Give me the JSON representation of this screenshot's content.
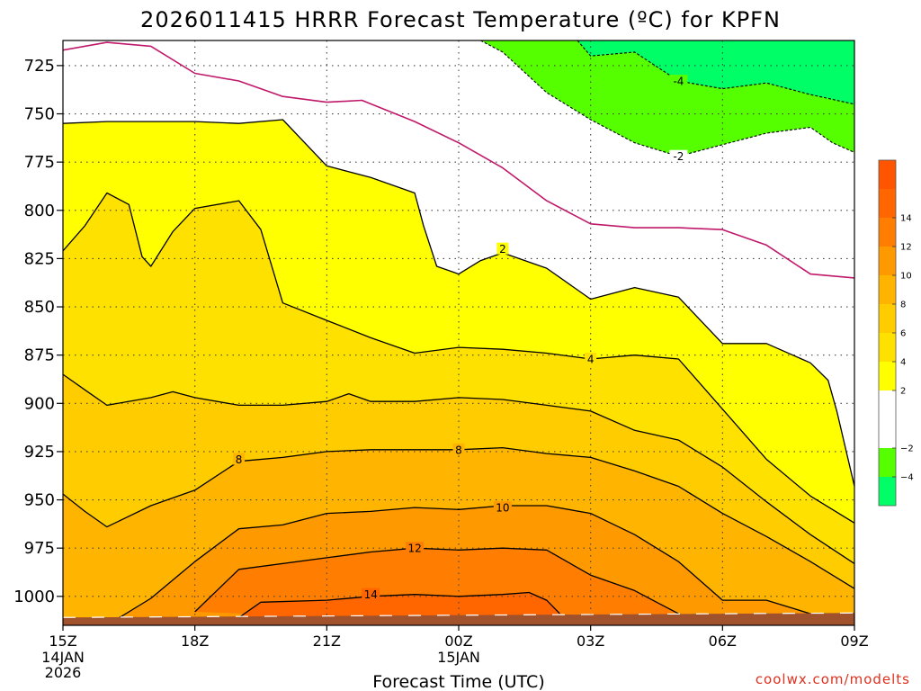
{
  "page": {
    "title": "2026011415 HRRR Forecast Temperature (ºC) for KPFN",
    "credit": "coolwx.com/modelts"
  },
  "chart_data": {
    "type": "contour",
    "title": "2026011415 HRRR Forecast Temperature (ºC) for KPFN",
    "xlabel": "Forecast Time (UTC)",
    "ylabel": "",
    "x_unit": "hours after 15Z 14JAN 2026",
    "xlim": [
      0,
      18
    ],
    "ylim": [
      1015,
      712
    ],
    "y_ticks": [
      725,
      750,
      775,
      800,
      825,
      850,
      875,
      900,
      925,
      950,
      975,
      1000
    ],
    "x_ticks": [
      {
        "hour": 0,
        "label": "15Z",
        "sub": [
          "14JAN",
          "2026"
        ]
      },
      {
        "hour": 3,
        "label": "18Z",
        "sub": []
      },
      {
        "hour": 6,
        "label": "21Z",
        "sub": []
      },
      {
        "hour": 9,
        "label": "00Z",
        "sub": [
          "15JAN"
        ]
      },
      {
        "hour": 12,
        "label": "03Z",
        "sub": []
      },
      {
        "hour": 15,
        "label": "06Z",
        "sub": []
      },
      {
        "hour": 18,
        "label": "09Z",
        "sub": []
      }
    ],
    "grid": true,
    "colorbar": {
      "placement": "right",
      "bands": [
        {
          "from": -6,
          "to": -4,
          "color": "#00ff66"
        },
        {
          "from": -4,
          "to": -2,
          "color": "#55ff00"
        },
        {
          "from": -2,
          "to": 2,
          "color": "#ffffff"
        },
        {
          "from": 2,
          "to": 4,
          "color": "#ffff00"
        },
        {
          "from": 4,
          "to": 6,
          "color": "#ffe100"
        },
        {
          "from": 6,
          "to": 8,
          "color": "#ffcc00"
        },
        {
          "from": 8,
          "to": 10,
          "color": "#ffb400"
        },
        {
          "from": 10,
          "to": 12,
          "color": "#ff9900"
        },
        {
          "from": 12,
          "to": 14,
          "color": "#ff7d00"
        },
        {
          "from": 14,
          "to": 16,
          "color": "#ff6600"
        },
        {
          "from": 16,
          "to": 18,
          "color": "#ff5500"
        }
      ],
      "labels": [
        -4,
        -2,
        2,
        4,
        6,
        8,
        10,
        12,
        14
      ]
    },
    "ground_color": "#a0522d",
    "zero_line_color": "#c0186a",
    "contours": [
      {
        "level": 0,
        "style": "zero",
        "points": [
          [
            0,
            717
          ],
          [
            1,
            713
          ],
          [
            2,
            715
          ],
          [
            3,
            729
          ],
          [
            4,
            733
          ],
          [
            5,
            741
          ],
          [
            6,
            744
          ],
          [
            6.8,
            743
          ],
          [
            8,
            754
          ],
          [
            9,
            765
          ],
          [
            10,
            778
          ],
          [
            11,
            795
          ],
          [
            12,
            807
          ],
          [
            13,
            809
          ],
          [
            14,
            809
          ],
          [
            15,
            810
          ],
          [
            16,
            818
          ],
          [
            17,
            833
          ],
          [
            18,
            835
          ]
        ]
      },
      {
        "level": 2,
        "style": "solid",
        "points": [
          [
            0,
            755
          ],
          [
            1,
            754
          ],
          [
            2,
            754
          ],
          [
            3,
            754
          ],
          [
            4,
            755
          ],
          [
            5,
            753
          ],
          [
            6,
            777
          ],
          [
            7,
            783
          ],
          [
            8,
            791
          ],
          [
            8.2,
            808
          ],
          [
            8.5,
            829
          ],
          [
            9,
            833
          ],
          [
            9.5,
            826
          ],
          [
            10,
            822
          ],
          [
            11,
            830
          ],
          [
            12,
            846
          ],
          [
            13,
            840
          ],
          [
            14,
            845
          ],
          [
            15,
            869
          ],
          [
            16,
            869
          ],
          [
            17,
            879
          ],
          [
            17.4,
            888
          ],
          [
            17.6,
            904
          ],
          [
            18,
            943
          ]
        ]
      },
      {
        "level": 4,
        "style": "solid",
        "points": [
          [
            0,
            821
          ],
          [
            0.5,
            808
          ],
          [
            1,
            791
          ],
          [
            1.5,
            797
          ],
          [
            1.8,
            824
          ],
          [
            2,
            829
          ],
          [
            2.5,
            811
          ],
          [
            3,
            799
          ],
          [
            4,
            795
          ],
          [
            4.5,
            810
          ],
          [
            5,
            848
          ],
          [
            6,
            857
          ],
          [
            7,
            866
          ],
          [
            8,
            874
          ],
          [
            9,
            871
          ],
          [
            10,
            872
          ],
          [
            11,
            874
          ],
          [
            12,
            877
          ],
          [
            13,
            875
          ],
          [
            14,
            877
          ],
          [
            15,
            903
          ],
          [
            16,
            929
          ],
          [
            17,
            948
          ],
          [
            18,
            962
          ]
        ]
      },
      {
        "level": 6,
        "style": "solid",
        "points": [
          [
            0,
            885
          ],
          [
            0.5,
            893
          ],
          [
            1,
            901
          ],
          [
            2,
            897
          ],
          [
            2.5,
            894
          ],
          [
            3,
            897
          ],
          [
            4,
            901
          ],
          [
            5,
            901
          ],
          [
            6,
            899
          ],
          [
            6.5,
            895
          ],
          [
            7,
            899
          ],
          [
            8,
            899
          ],
          [
            9,
            897
          ],
          [
            10,
            898
          ],
          [
            11,
            901
          ],
          [
            12,
            904
          ],
          [
            13,
            914
          ],
          [
            14,
            919
          ],
          [
            15,
            933
          ],
          [
            16,
            951
          ],
          [
            17,
            968
          ],
          [
            18,
            983
          ]
        ]
      },
      {
        "level": 8,
        "style": "solid",
        "points": [
          [
            0,
            947
          ],
          [
            0.5,
            956
          ],
          [
            1,
            964
          ],
          [
            2,
            953
          ],
          [
            3,
            945
          ],
          [
            4,
            930
          ],
          [
            5,
            928
          ],
          [
            6,
            925
          ],
          [
            7,
            924
          ],
          [
            8,
            924
          ],
          [
            9,
            924
          ],
          [
            10,
            923
          ],
          [
            11,
            926
          ],
          [
            12,
            928
          ],
          [
            13,
            935
          ],
          [
            14,
            943
          ],
          [
            15,
            957
          ],
          [
            16,
            969
          ],
          [
            17,
            982
          ],
          [
            18,
            996
          ]
        ]
      },
      {
        "level": 10,
        "style": "solid",
        "points": [
          [
            1,
            1015
          ],
          [
            2,
            1001
          ],
          [
            3,
            982
          ],
          [
            4,
            965
          ],
          [
            5,
            963
          ],
          [
            6,
            957
          ],
          [
            7,
            956
          ],
          [
            8,
            954
          ],
          [
            9,
            955
          ],
          [
            10,
            953
          ],
          [
            11,
            953
          ],
          [
            12,
            957
          ],
          [
            13,
            968
          ],
          [
            14,
            982
          ],
          [
            15,
            1002
          ],
          [
            16,
            1002
          ],
          [
            17,
            1009
          ],
          [
            17.5,
            1013
          ]
        ]
      },
      {
        "level": 12,
        "style": "solid",
        "points": [
          [
            3,
            1008
          ],
          [
            4,
            986
          ],
          [
            6,
            980
          ],
          [
            7,
            977
          ],
          [
            8,
            975
          ],
          [
            9,
            976
          ],
          [
            10,
            975
          ],
          [
            11,
            976
          ],
          [
            12,
            989
          ],
          [
            13,
            997
          ],
          [
            13.5,
            1003
          ],
          [
            14,
            1009
          ]
        ]
      },
      {
        "level": 14,
        "style": "solid",
        "points": [
          [
            4,
            1011
          ],
          [
            4.5,
            1003
          ],
          [
            6,
            1002
          ],
          [
            7,
            1000
          ],
          [
            8,
            999
          ],
          [
            9,
            1000
          ],
          [
            10,
            999
          ],
          [
            10.6,
            998
          ],
          [
            11,
            1002
          ],
          [
            11.3,
            1009
          ]
        ]
      },
      {
        "level": -2,
        "style": "dashed",
        "points": [
          [
            9.5,
            712
          ],
          [
            10,
            718
          ],
          [
            11,
            739
          ],
          [
            12,
            753
          ],
          [
            13,
            765
          ],
          [
            14,
            772
          ],
          [
            15,
            766
          ],
          [
            16,
            760
          ],
          [
            17,
            757
          ],
          [
            17.5,
            765
          ],
          [
            18,
            770
          ]
        ]
      },
      {
        "level": -4,
        "style": "dashed",
        "points": [
          [
            11.7,
            712
          ],
          [
            12,
            720
          ],
          [
            13,
            718
          ],
          [
            14,
            733
          ],
          [
            15,
            737
          ],
          [
            16,
            734
          ],
          [
            17,
            740
          ],
          [
            18,
            745
          ]
        ]
      }
    ],
    "contour_labels": [
      {
        "text": "8",
        "hour": 4,
        "pres": 929
      },
      {
        "text": "8",
        "hour": 9,
        "pres": 924
      },
      {
        "text": "10",
        "hour": 10,
        "pres": 954
      },
      {
        "text": "12",
        "hour": 8,
        "pres": 975
      },
      {
        "text": "14",
        "hour": 7,
        "pres": 999
      },
      {
        "text": "4",
        "hour": 12,
        "pres": 877
      },
      {
        "text": "2",
        "hour": 10,
        "pres": 820
      },
      {
        "text": "-2",
        "hour": 14,
        "pres": 772
      },
      {
        "text": "-4",
        "hour": 14,
        "pres": 733
      }
    ]
  }
}
